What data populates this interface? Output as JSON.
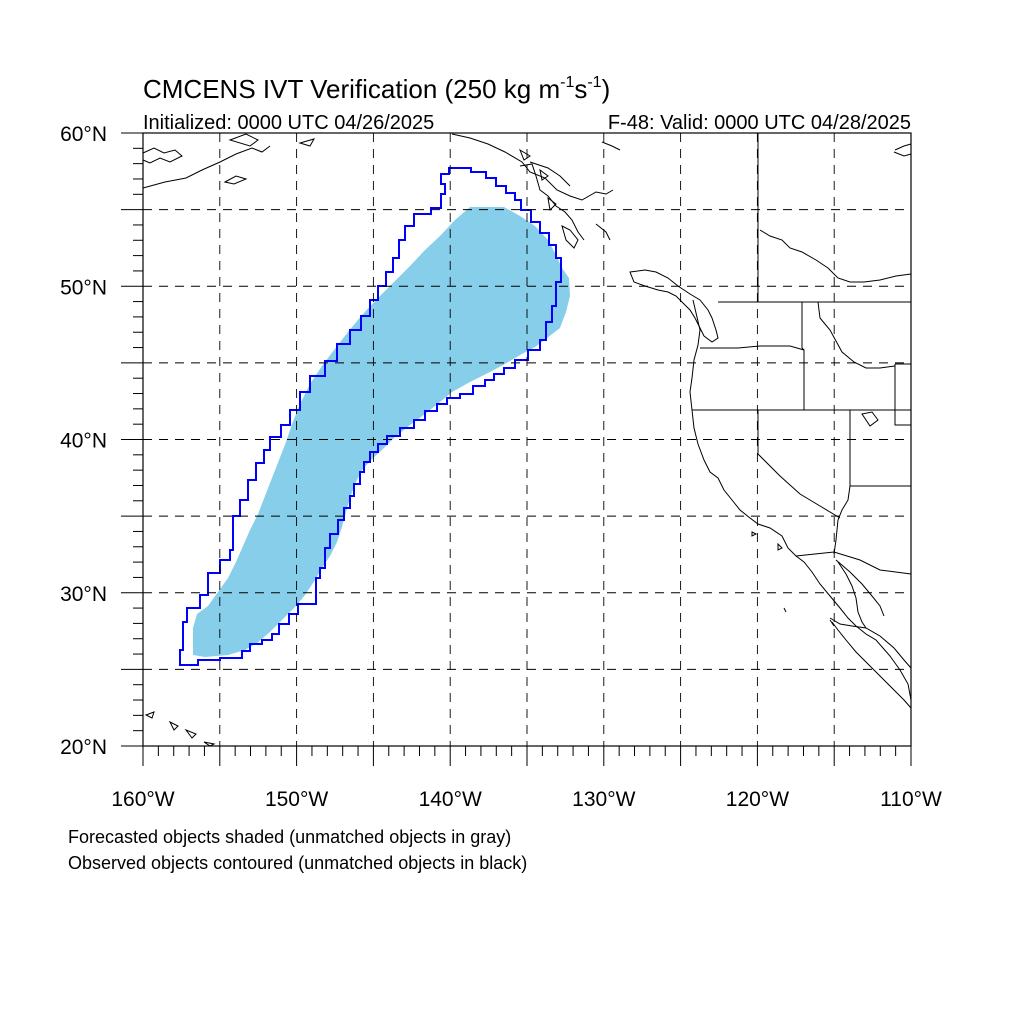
{
  "header": {
    "title_main": "CMCENS IVT Verification (250 kg m",
    "title_sup1": "-1",
    "title_mid": "s",
    "title_sup2": "-1",
    "title_end": ")",
    "initialized": "Initialized: 0000 UTC 04/26/2025",
    "valid": "F-48: Valid: 0000 UTC 04/28/2025"
  },
  "map": {
    "lon_range": [
      -160,
      -110
    ],
    "lat_range": [
      20,
      60
    ],
    "lon_ticks": [
      {
        "value": -160,
        "label": "160°W"
      },
      {
        "value": -150,
        "label": "150°W"
      },
      {
        "value": -140,
        "label": "140°W"
      },
      {
        "value": -130,
        "label": "130°W"
      },
      {
        "value": -120,
        "label": "120°W"
      },
      {
        "value": -110,
        "label": "110°W"
      }
    ],
    "lat_ticks": [
      {
        "value": 20,
        "label": "20°N"
      },
      {
        "value": 30,
        "label": "30°N"
      },
      {
        "value": 40,
        "label": "40°N"
      },
      {
        "value": 50,
        "label": "50°N"
      },
      {
        "value": 60,
        "label": "60°N"
      }
    ],
    "grid": "dashed, every 5 degrees",
    "colors": {
      "forecast_fill": "#87ceeb",
      "observed_contour": "#0000ff",
      "coastline": "#000000"
    }
  },
  "legend": {
    "line1": "Forecasted objects shaded (unmatched objects in gray)",
    "line2": "Observed objects contoured (unmatched objects in black)"
  }
}
